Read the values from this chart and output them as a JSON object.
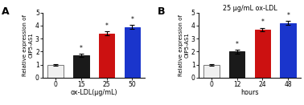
{
  "panel_A": {
    "label": "A",
    "title": "",
    "xlabel": "ox-LDL(μg/mL)",
    "ylabel": "Relative expression of\nOIP5-AS1",
    "categories": [
      "0",
      "15",
      "25",
      "50"
    ],
    "values": [
      1.0,
      1.7,
      3.4,
      3.9
    ],
    "errors": [
      0.06,
      0.13,
      0.17,
      0.17
    ],
    "colors": [
      "#f0f0f0",
      "#1a1a1a",
      "#cc1111",
      "#1a35cc"
    ],
    "edge_colors": [
      "#777777",
      "#1a1a1a",
      "#cc1111",
      "#1a35cc"
    ],
    "ylim": [
      0,
      5
    ],
    "yticks": [
      0,
      1,
      2,
      3,
      4,
      5
    ]
  },
  "panel_B": {
    "label": "B",
    "title": "25 μg/mL ox-LDL",
    "xlabel": "hours",
    "ylabel": "Relative expression of\nOIP5-AS1",
    "categories": [
      "0",
      "12",
      "24",
      "48"
    ],
    "values": [
      1.0,
      2.0,
      3.7,
      4.2
    ],
    "errors": [
      0.06,
      0.17,
      0.14,
      0.17
    ],
    "colors": [
      "#f0f0f0",
      "#1a1a1a",
      "#cc1111",
      "#1a35cc"
    ],
    "edge_colors": [
      "#777777",
      "#1a1a1a",
      "#cc1111",
      "#1a35cc"
    ],
    "ylim": [
      0,
      5
    ],
    "yticks": [
      0,
      1,
      2,
      3,
      4,
      5
    ]
  },
  "star_color": "#000000",
  "fig_width": 3.78,
  "fig_height": 1.31,
  "dpi": 100
}
